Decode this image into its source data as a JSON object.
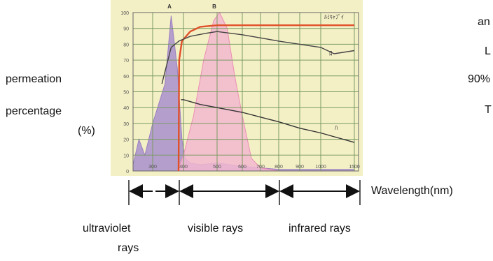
{
  "labels": {
    "y_line1": "permeation",
    "y_line2": "percentage",
    "y_line3": "(%)",
    "x_axis": "Wavelength(nm)",
    "band_uv_line1": "ultraviolet",
    "band_uv_line2": "rays",
    "band_visible": "visible rays",
    "band_infrared": "infrared rays"
  },
  "right_fragments": [
    "an",
    "L",
    "90%",
    "T"
  ],
  "chart_data": {
    "type": "line",
    "title": "",
    "ylabel": "permeation percentage (%)",
    "xlabel": "Wavelength(nm)",
    "ylim": [
      0,
      100
    ],
    "y_ticks": [
      0,
      10,
      20,
      30,
      40,
      50,
      60,
      70,
      80,
      90,
      100
    ],
    "x_tick_labels": [
      "300",
      "400",
      "500",
      "600",
      "700",
      "800",
      "900",
      "1000",
      "1500"
    ],
    "top_markers": [
      "A",
      "B"
    ],
    "series": [
      {
        "name": "",
        "color": "#9b7fc0",
        "fill": "#a88fcc",
        "x": [
          200,
          230,
          260,
          300,
          340,
          360,
          380,
          395,
          405,
          420,
          450,
          500,
          550,
          600,
          700,
          800,
          900,
          1000,
          1500
        ],
        "values": [
          4,
          20,
          10,
          30,
          55,
          98,
          65,
          20,
          8,
          5,
          4,
          5,
          4,
          3,
          2,
          1,
          1,
          1,
          1
        ]
      },
      {
        "name": "",
        "color": "#e98fb3",
        "fill": "#f2b7cf",
        "x": [
          380,
          400,
          430,
          460,
          490,
          510,
          540,
          570,
          600,
          650,
          700,
          800
        ],
        "values": [
          0,
          10,
          35,
          70,
          95,
          100,
          90,
          60,
          35,
          8,
          2,
          0
        ]
      },
      {
        "name": "ﾙﾐｷｬﾌﾟｲ",
        "color": "#e0502a",
        "x": [
          384,
          386,
          395,
          420,
          450,
          500,
          600,
          700,
          800,
          900,
          1000,
          1500
        ],
        "values": [
          0,
          70,
          82,
          88,
          91,
          92,
          92,
          92,
          92,
          92,
          92,
          92
        ]
      },
      {
        "name": "ﾛ",
        "color": "#444444",
        "x": [
          330,
          360,
          385,
          420,
          470,
          500,
          600,
          700,
          800,
          900,
          1000,
          1200,
          1500
        ],
        "values": [
          55,
          78,
          82,
          85,
          87,
          88,
          86,
          84,
          82,
          80,
          78,
          74,
          76
        ]
      },
      {
        "name": "ﾊ",
        "color": "#333333",
        "x": [
          392,
          400,
          450,
          500,
          600,
          700,
          800,
          900,
          1000,
          1500
        ],
        "values": [
          45,
          45,
          42,
          40,
          37,
          34,
          31,
          27,
          24,
          18
        ]
      }
    ]
  }
}
